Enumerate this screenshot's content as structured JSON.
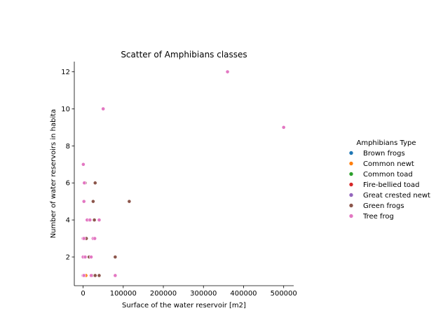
{
  "chart_data": {
    "type": "scatter",
    "title": "Scatter of Amphibians classes",
    "xlabel": "Surface of the water reservoir [m2]",
    "ylabel": "Number of water reservoirs in habita",
    "xlim": [
      -22000,
      525000
    ],
    "ylim": [
      0.45,
      12.55
    ],
    "xticks": [
      0,
      100000,
      200000,
      300000,
      400000,
      500000
    ],
    "yticks": [
      2,
      4,
      6,
      8,
      10,
      12
    ],
    "grid": false,
    "legend": {
      "title": "Amphibians Type",
      "placement": "right"
    },
    "series": [
      {
        "name": "Brown frogs",
        "color": "#1f77b4",
        "points": [
          [
            4000,
            1
          ]
        ]
      },
      {
        "name": "Common newt",
        "color": "#ff7f0e",
        "points": [
          [
            7000,
            1
          ]
        ]
      },
      {
        "name": "Common toad",
        "color": "#2ca02c",
        "points": [
          [
            0,
            1
          ],
          [
            1500,
            1
          ]
        ]
      },
      {
        "name": "Fire-bellied toad",
        "color": "#d62728",
        "points": [
          [
            5000,
            3
          ],
          [
            3000,
            2
          ]
        ]
      },
      {
        "name": "Great crested newt",
        "color": "#9467bd",
        "points": [
          [
            6000,
            2
          ]
        ]
      },
      {
        "name": "Green frogs",
        "color": "#8c564b",
        "points": [
          [
            5000,
            6
          ],
          [
            30000,
            6
          ],
          [
            25000,
            5
          ],
          [
            115000,
            5
          ],
          [
            15000,
            4
          ],
          [
            28000,
            4
          ],
          [
            8000,
            3
          ],
          [
            15000,
            2
          ],
          [
            80000,
            2
          ],
          [
            22000,
            1
          ],
          [
            30000,
            1
          ],
          [
            40000,
            1
          ]
        ]
      },
      {
        "name": "Tree frog",
        "color": "#e377c2",
        "points": [
          [
            360000,
            12
          ],
          [
            50000,
            10
          ],
          [
            500000,
            9
          ],
          [
            500,
            7
          ],
          [
            3000,
            6
          ],
          [
            2000,
            5
          ],
          [
            10000,
            4
          ],
          [
            17000,
            4
          ],
          [
            40000,
            4
          ],
          [
            0,
            3
          ],
          [
            2000,
            3
          ],
          [
            25000,
            3
          ],
          [
            29000,
            3
          ],
          [
            0,
            2
          ],
          [
            5000,
            2
          ],
          [
            20000,
            2
          ],
          [
            0,
            1
          ],
          [
            2000,
            1
          ],
          [
            20000,
            1
          ],
          [
            80000,
            1
          ]
        ]
      }
    ]
  }
}
